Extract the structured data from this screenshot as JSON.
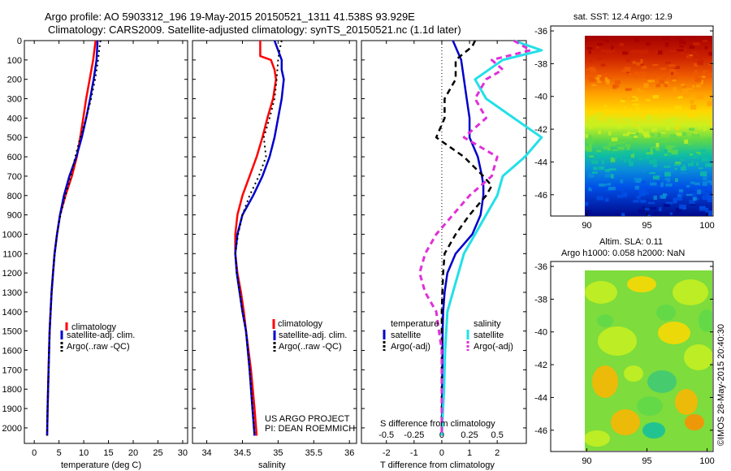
{
  "title_line1": "Argo profile: AO 5903312_196 19-May-2015 20150521_1311 41.538S 93.929E",
  "title_line2": "Climatology: CARS2009. Satellite-adjusted climatology: synTS_20150521.nc (1.1d later)",
  "credit_line1": "US ARGO PROJECT",
  "credit_line2": "PI: DEAN ROEMMICH",
  "watermark": "©IMOS 28-May-2015 20:40:30",
  "colors": {
    "climatology": "#ff0000",
    "satellite": "#0000cc",
    "argo": "#000000",
    "sat_salinity": "#22e0e8",
    "argo_salinity": "#e030d8"
  },
  "chart_data": [
    {
      "type": "line",
      "id": "temperature",
      "xlabel": "temperature (deg C)",
      "xlim": [
        -2,
        31
      ],
      "ylim": [
        2080,
        0
      ],
      "xticks": [
        0,
        5,
        10,
        15,
        20,
        25,
        30
      ],
      "yticks": [
        0,
        100,
        200,
        300,
        400,
        500,
        600,
        700,
        800,
        900,
        1000,
        1100,
        1200,
        1300,
        1400,
        1500,
        1600,
        1700,
        1800,
        1900,
        2000
      ],
      "legend": [
        "climatology",
        "satellite-adj. clim.",
        "Argo(..raw -QC)"
      ],
      "series": [
        {
          "name": "climatology",
          "depth": [
            0,
            100,
            200,
            300,
            400,
            500,
            600,
            700,
            800,
            900,
            1000,
            1100,
            1200,
            1300,
            1400,
            1500,
            1700,
            1900,
            2040
          ],
          "values": [
            12.4,
            11.9,
            11.2,
            10.5,
            9.9,
            9.3,
            8.6,
            7.6,
            6.3,
            5.2,
            4.6,
            4.1,
            3.8,
            3.5,
            3.3,
            3.1,
            2.9,
            2.7,
            2.6
          ]
        },
        {
          "name": "satellite-adj. clim.",
          "depth": [
            0,
            100,
            200,
            300,
            400,
            500,
            600,
            700,
            800,
            900,
            1000,
            1100,
            1200,
            1300,
            1400,
            1500,
            1700,
            1900,
            2040
          ],
          "values": [
            12.8,
            12.6,
            12.0,
            11.3,
            10.5,
            9.6,
            8.5,
            7.1,
            6.0,
            5.2,
            4.6,
            4.1,
            3.8,
            3.5,
            3.3,
            3.1,
            2.9,
            2.7,
            2.6
          ]
        },
        {
          "name": "Argo(..raw -QC)",
          "depth": [
            0,
            50,
            100,
            200,
            300,
            400,
            500,
            600,
            700,
            800,
            900,
            1000,
            1100,
            1200,
            1300,
            1400,
            1500,
            1700,
            1900,
            2040
          ],
          "values": [
            13.4,
            13.1,
            12.9,
            12.3,
            11.5,
            10.5,
            9.3,
            8.3,
            7.4,
            6.3,
            5.3,
            4.6,
            4.1,
            3.8,
            3.5,
            3.3,
            3.1,
            2.9,
            2.7,
            2.6
          ]
        }
      ]
    },
    {
      "type": "line",
      "id": "salinity",
      "xlabel": "salinity",
      "xlim": [
        33.8,
        36.1
      ],
      "ylim": [
        2080,
        0
      ],
      "xticks": [
        34,
        34.5,
        35,
        35.5,
        36
      ],
      "xticklabels": [
        "34",
        "34.5",
        "35",
        "35.5",
        "36"
      ],
      "legend": [
        "climatology",
        "satellite-adj. clim.",
        "Argo(..raw -QC)"
      ],
      "series": [
        {
          "name": "climatology",
          "depth": [
            0,
            80,
            100,
            150,
            200,
            300,
            400,
            500,
            600,
            700,
            800,
            900,
            1000,
            1100,
            1200,
            1300,
            1400,
            1500,
            1700,
            1900,
            2040
          ],
          "values": [
            34.75,
            34.75,
            34.9,
            34.95,
            34.97,
            34.93,
            34.85,
            34.78,
            34.7,
            34.6,
            34.5,
            34.43,
            34.4,
            34.4,
            34.43,
            34.48,
            34.52,
            34.55,
            34.62,
            34.67,
            34.7
          ]
        },
        {
          "name": "satellite-adj. clim.",
          "depth": [
            0,
            50,
            100,
            150,
            200,
            300,
            400,
            500,
            600,
            700,
            800,
            900,
            1000,
            1100,
            1200,
            1300,
            1400,
            1500,
            1700,
            1900,
            2040
          ],
          "values": [
            34.95,
            35.0,
            35.05,
            35.05,
            35.08,
            35.05,
            35.0,
            34.95,
            34.88,
            34.78,
            34.65,
            34.5,
            34.43,
            34.4,
            34.42,
            34.46,
            34.5,
            34.55,
            34.6,
            34.64,
            34.67
          ]
        },
        {
          "name": "Argo(..raw -QC)",
          "depth": [
            0,
            50,
            100,
            200,
            300,
            400,
            500,
            600,
            700,
            800,
            900,
            1000,
            1100,
            1200,
            1300,
            1400,
            1500,
            1700,
            1900,
            2040
          ],
          "values": [
            35.05,
            35.02,
            35.0,
            34.98,
            34.95,
            34.88,
            34.8,
            34.83,
            34.73,
            34.6,
            34.5,
            34.44,
            34.4,
            34.42,
            34.46,
            34.5,
            34.55,
            34.6,
            34.64,
            34.67
          ]
        }
      ]
    },
    {
      "type": "line",
      "id": "difference",
      "xlabel": "T difference from climatology",
      "xlabel_top": "S difference from climatology",
      "xlim": [
        -2.9,
        3.05
      ],
      "ylim": [
        2080,
        0
      ],
      "xticks": [
        -2,
        -1,
        0,
        1,
        2
      ],
      "xticks_top": [
        -0.5,
        -0.25,
        0,
        0.25,
        0.5
      ],
      "legend_temperature": "temperature",
      "legend_salinity": "salinity",
      "legend": [
        "satellite",
        "Argo(-adj)",
        "satellite",
        "Argo(-adj)"
      ],
      "series": [
        {
          "name": "satellite",
          "group": "temperature",
          "depth": [
            0,
            100,
            200,
            300,
            400,
            500,
            600,
            700,
            750,
            800,
            900,
            1000,
            1100,
            1200,
            1300,
            1400,
            1500,
            1700,
            1900,
            2040
          ],
          "values": [
            0.4,
            0.7,
            0.8,
            0.9,
            1.0,
            1.0,
            1.3,
            1.45,
            1.5,
            1.5,
            1.4,
            1.1,
            0.5,
            0.2,
            0.1,
            0.05,
            0.03,
            0.02,
            0.01,
            0.0
          ]
        },
        {
          "name": "Argo(-adj)",
          "group": "temperature",
          "depth": [
            0,
            30,
            100,
            200,
            300,
            400,
            500,
            550,
            600,
            700,
            750,
            800,
            900,
            1000,
            1100,
            1200,
            1300,
            1400,
            1600,
            1800,
            2040
          ],
          "values": [
            1.2,
            1.1,
            0.5,
            0.5,
            0.1,
            0.1,
            -0.2,
            0.3,
            0.8,
            1.5,
            1.8,
            1.6,
            1.0,
            0.5,
            0.1,
            0.05,
            0.02,
            0.0,
            0.0,
            0.0,
            0.0
          ]
        },
        {
          "name": "satellite",
          "group": "salinity",
          "depth": [
            0,
            50,
            100,
            200,
            300,
            400,
            500,
            600,
            700,
            800,
            900,
            1000,
            1100,
            1200,
            1300,
            1400,
            1600,
            1800,
            2040
          ],
          "values": [
            0.65,
            0.9,
            0.55,
            0.3,
            0.4,
            0.65,
            0.9,
            0.75,
            0.55,
            0.5,
            0.4,
            0.3,
            0.2,
            0.15,
            0.1,
            0.05,
            0.03,
            0.02,
            0.0
          ]
        },
        {
          "name": "Argo(-adj)",
          "group": "salinity",
          "depth": [
            0,
            50,
            100,
            150,
            200,
            300,
            400,
            500,
            600,
            700,
            800,
            900,
            1000,
            1100,
            1200,
            1300,
            1400,
            1600,
            1800,
            2040
          ],
          "values": [
            0.65,
            0.8,
            0.45,
            0.55,
            0.4,
            0.3,
            0.4,
            0.2,
            0.5,
            0.45,
            0.25,
            0.1,
            -0.05,
            -0.15,
            -0.2,
            -0.15,
            -0.05,
            0.0,
            0.0,
            0.0
          ]
        }
      ]
    },
    {
      "type": "heatmap",
      "id": "sst_map",
      "title": "sat. SST: 12.4 Argo: 12.9",
      "xlim": [
        87,
        100.5
      ],
      "ylim": [
        -47.3,
        -35.7
      ],
      "xticks": [
        90,
        95,
        100
      ],
      "yticks": [
        -36,
        -38,
        -40,
        -42,
        -44,
        -46
      ],
      "colormap": "jet",
      "gradient": "warm north to cold south"
    },
    {
      "type": "heatmap",
      "id": "sla_map",
      "title_line1": "Altim. SLA: 0.11",
      "title_line2": "Argo h1000: 0.058 h2000: NaN",
      "xlim": [
        87,
        100.5
      ],
      "ylim": [
        -47.3,
        -35.7
      ],
      "xticks": [
        90,
        95,
        100
      ],
      "yticks": [
        -36,
        -38,
        -40,
        -42,
        -44,
        -46
      ],
      "colormap": "jet"
    }
  ]
}
